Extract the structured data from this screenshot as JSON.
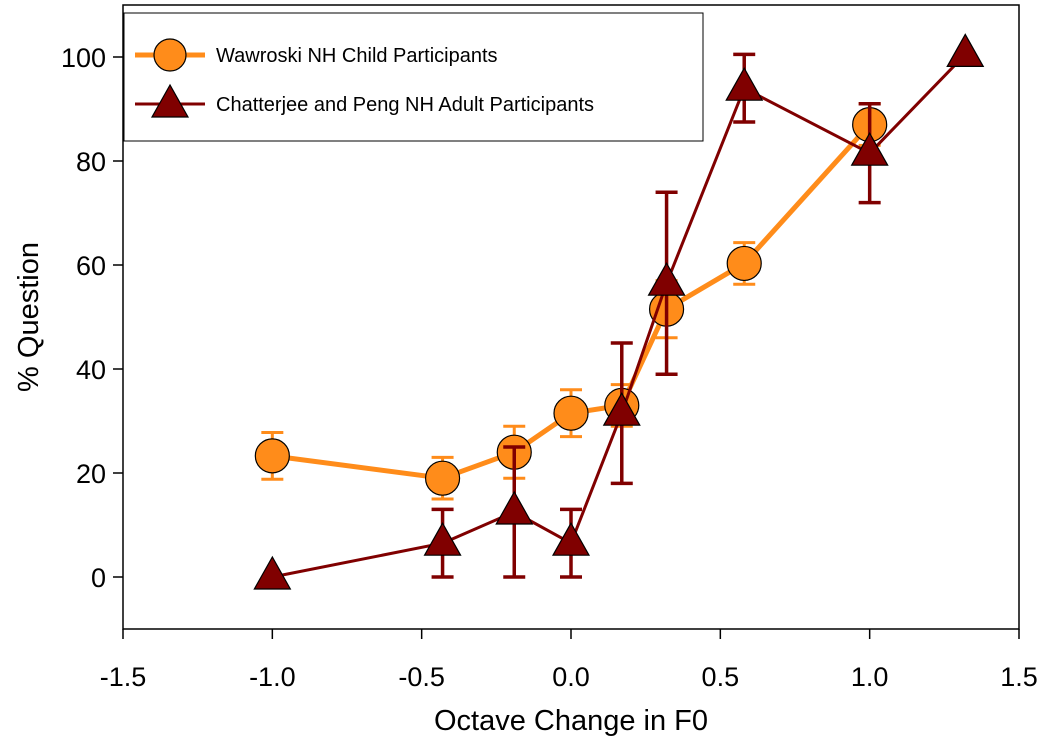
{
  "chart_data": {
    "type": "line",
    "xlabel": "Octave Change in F0",
    "ylabel": "% Question",
    "xlim": [
      -1.5,
      1.5
    ],
    "ylim": [
      -10,
      110
    ],
    "xticks": [
      "-1.5",
      "-1.0",
      "-0.5",
      "0.0",
      "0.5",
      "1.0",
      "1.5"
    ],
    "xtick_values": [
      -1.5,
      -1.0,
      -0.5,
      0.0,
      0.5,
      1.0,
      1.5
    ],
    "yticks": [
      "0",
      "20",
      "40",
      "60",
      "80",
      "100"
    ],
    "ytick_values": [
      0,
      20,
      40,
      60,
      80,
      100
    ],
    "grid": false,
    "legend_position": "top-left",
    "series": [
      {
        "name": "Wawroski NH Child Participants",
        "color": "#ff8c1a",
        "marker": "circle",
        "x": [
          -1.0,
          -0.43,
          -0.19,
          0.0,
          0.17,
          0.32,
          0.58,
          1.0
        ],
        "y": [
          23.3,
          19.0,
          24.0,
          31.5,
          33.0,
          51.5,
          60.3,
          87.0
        ],
        "err": [
          4.5,
          4.0,
          5.0,
          4.5,
          4.0,
          5.5,
          4.0,
          4.0
        ]
      },
      {
        "name": "Chatterjee and Peng NH Adult Participants",
        "color": "#800000",
        "marker": "triangle",
        "x": [
          -1.0,
          -0.43,
          -0.19,
          0.0,
          0.17,
          0.32,
          0.58,
          1.0,
          1.32
        ],
        "y": [
          0.0,
          6.5,
          12.5,
          6.5,
          31.5,
          56.5,
          94.0,
          81.5,
          100.5
        ],
        "err": [
          0,
          6.5,
          12.5,
          6.5,
          13.5,
          17.5,
          6.5,
          9.5,
          0
        ]
      }
    ]
  }
}
